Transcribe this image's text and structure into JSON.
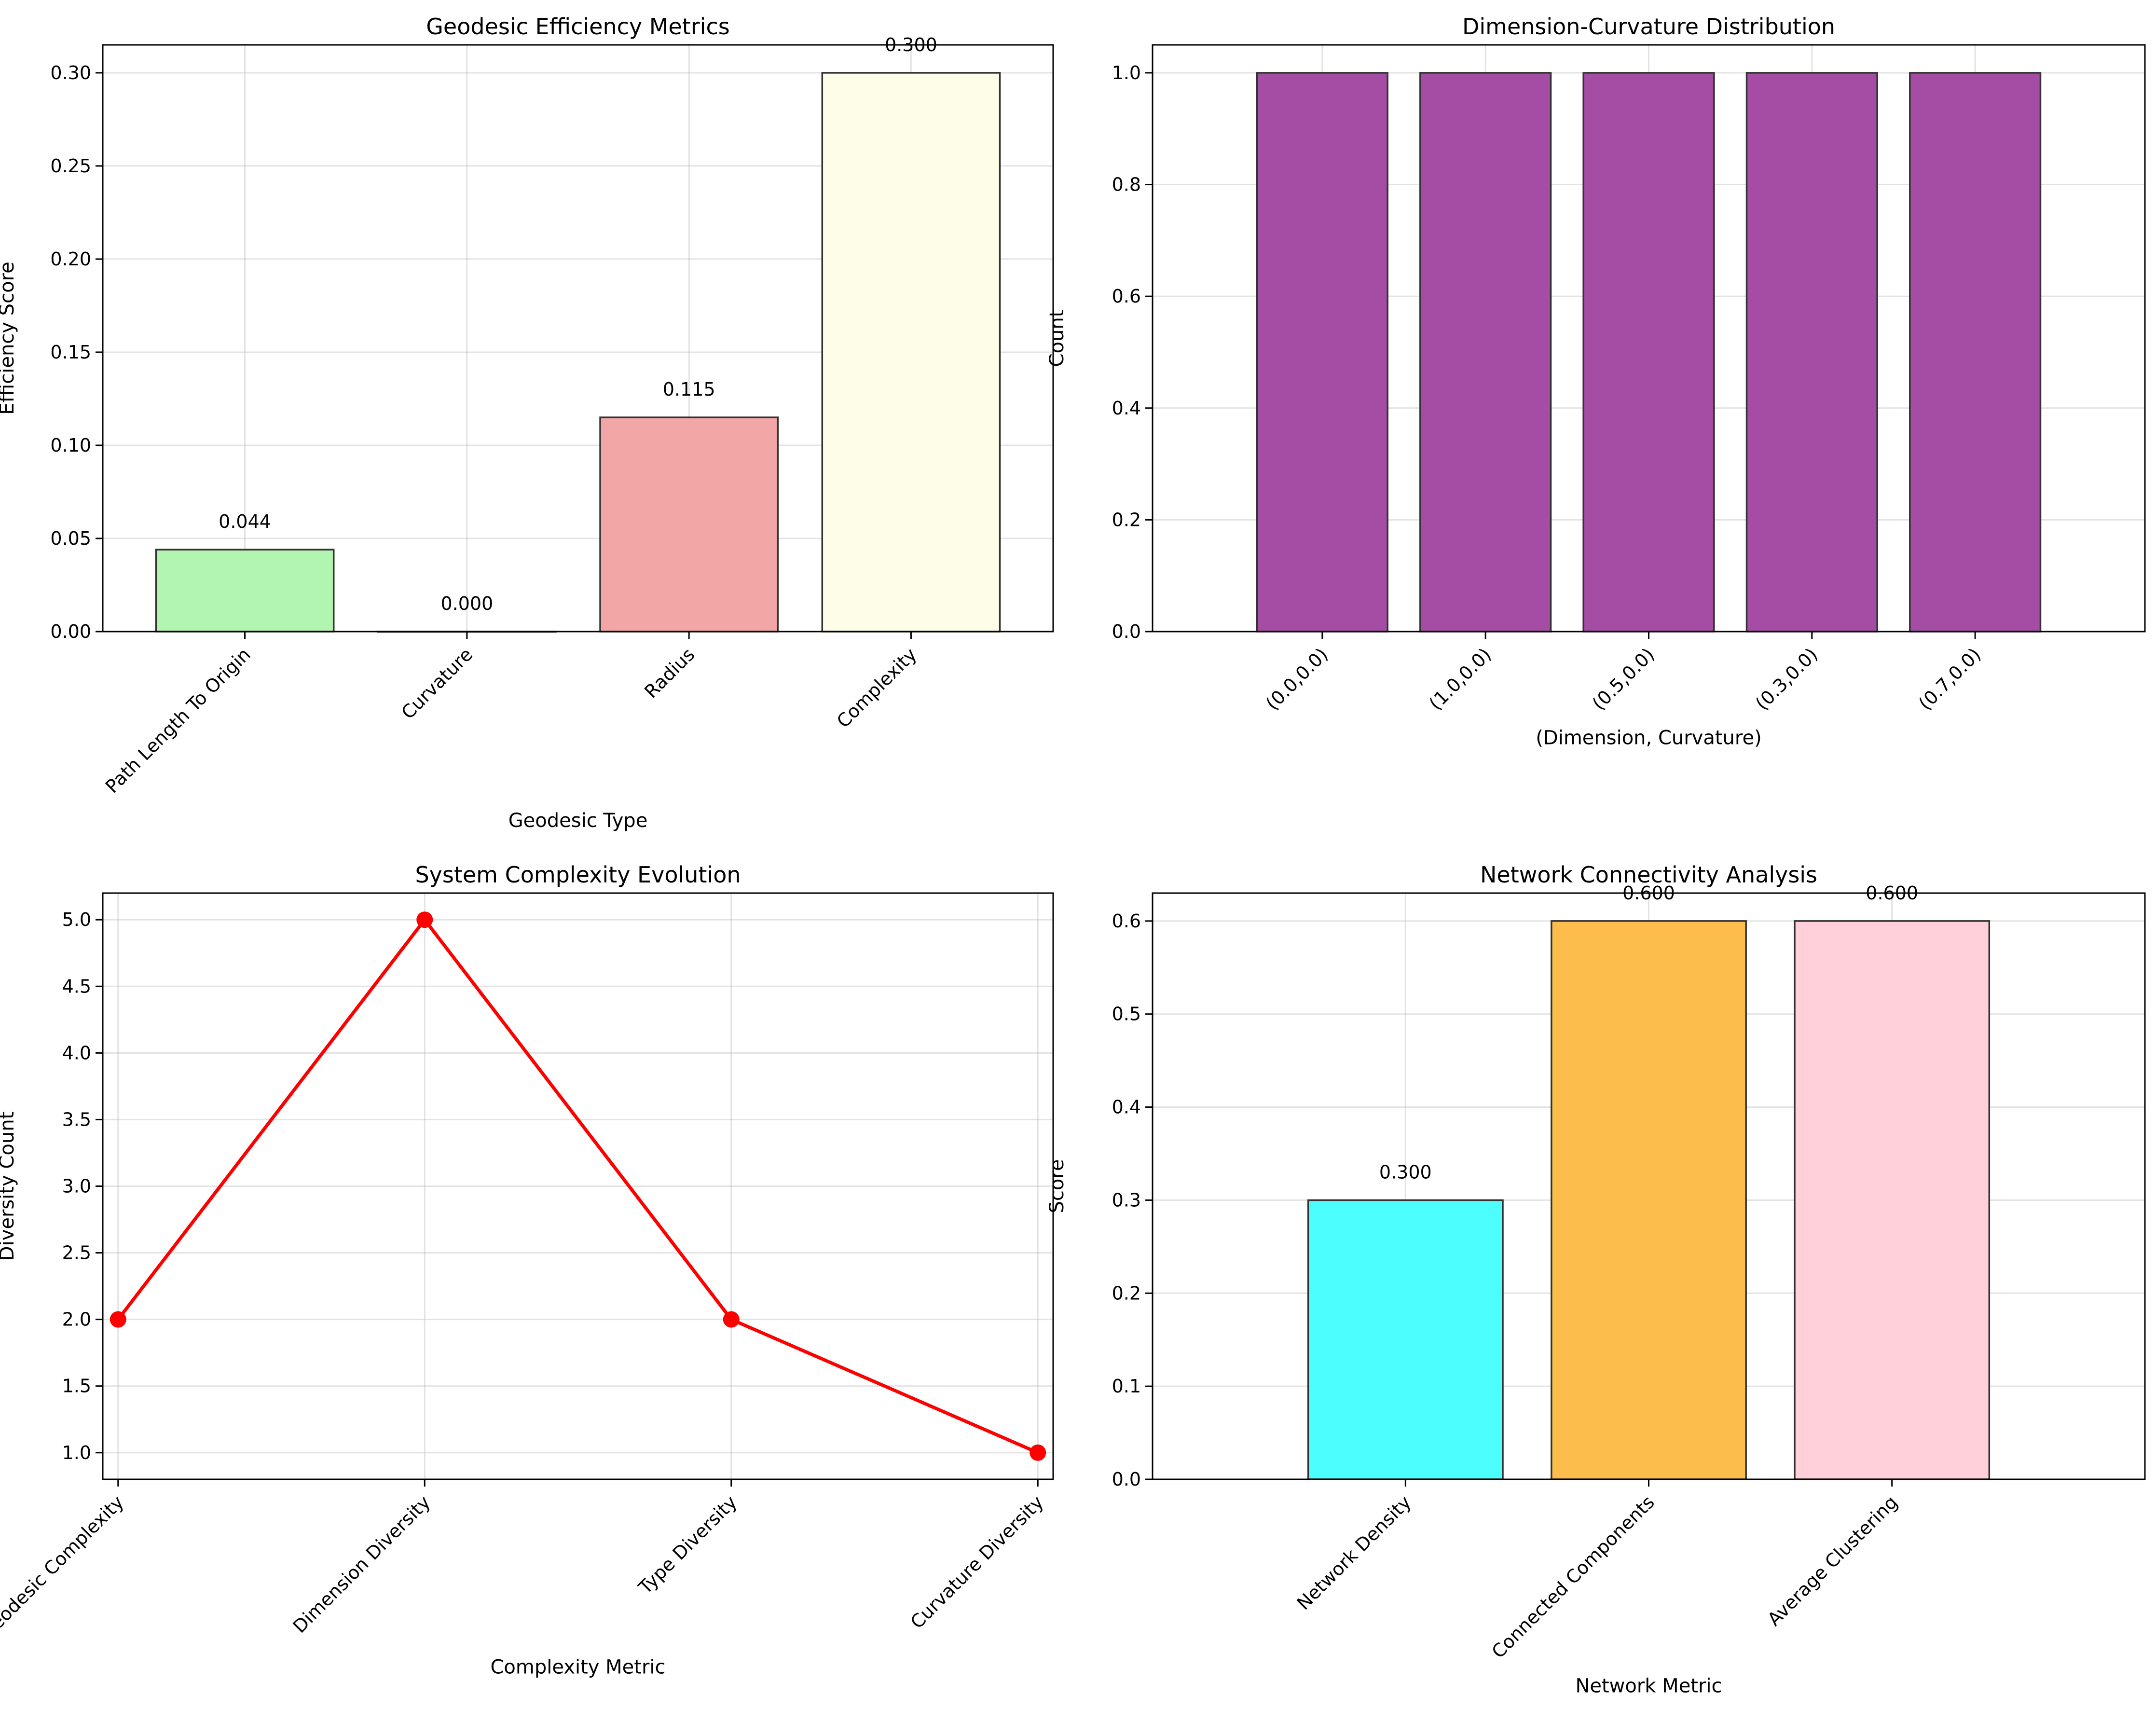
{
  "chart_data": [
    {
      "id": "geodesic",
      "type": "bar",
      "title": "Geodesic Efficiency Metrics",
      "xlabel": "Geodesic Type",
      "ylabel": "Efficiency Score",
      "categories": [
        "Path Length To Origin",
        "Curvature",
        "Radius",
        "Complexity"
      ],
      "values": [
        0.044,
        0.0,
        0.115,
        0.3
      ],
      "value_labels": [
        "0.044",
        "0.000",
        "0.115",
        "0.300"
      ],
      "colors": [
        "#b2f5b0",
        "#dddddd",
        "#f2a6a6",
        "#fefee8"
      ],
      "ylim": [
        0,
        0.315
      ],
      "yticks": [
        0.0,
        0.05,
        0.1,
        0.15,
        0.2,
        0.25,
        0.3
      ],
      "ytick_labels": [
        "0.00",
        "0.05",
        "0.10",
        "0.15",
        "0.20",
        "0.25",
        "0.30"
      ],
      "grid": true,
      "xtick_rotation": 45
    },
    {
      "id": "dimcurv",
      "type": "bar",
      "title": "Dimension-Curvature Distribution",
      "xlabel": "(Dimension, Curvature)",
      "ylabel": "Count",
      "categories": [
        "(0.0,0.0)",
        "(1.0,0.0)",
        "(0.5,0.0)",
        "(0.3,0.0)",
        "(0.7,0.0)"
      ],
      "values": [
        1,
        1,
        1,
        1,
        1
      ],
      "colors": [
        "#a54ca5",
        "#a54ca5",
        "#a54ca5",
        "#a54ca5",
        "#a54ca5"
      ],
      "ylim": [
        0,
        1.05
      ],
      "yticks": [
        0.0,
        0.2,
        0.4,
        0.6,
        0.8,
        1.0
      ],
      "ytick_labels": [
        "0.0",
        "0.2",
        "0.4",
        "0.6",
        "0.8",
        "1.0"
      ],
      "grid": true,
      "xtick_rotation": 45
    },
    {
      "id": "complexity",
      "type": "line",
      "title": "System Complexity Evolution",
      "xlabel": "Complexity Metric",
      "ylabel": "Diversity Count",
      "categories": [
        "Geodesic Complexity",
        "Dimension Diversity",
        "Type Diversity",
        "Curvature Diversity"
      ],
      "values": [
        2,
        5,
        2,
        1
      ],
      "line_color": "#ff0000",
      "ylim": [
        0.8,
        5.2
      ],
      "yticks": [
        1.0,
        1.5,
        2.0,
        2.5,
        3.0,
        3.5,
        4.0,
        4.5,
        5.0
      ],
      "ytick_labels": [
        "1.0",
        "1.5",
        "2.0",
        "2.5",
        "3.0",
        "3.5",
        "4.0",
        "4.5",
        "5.0"
      ],
      "grid": true,
      "xtick_rotation": 45
    },
    {
      "id": "network",
      "type": "bar",
      "title": "Network Connectivity Analysis",
      "xlabel": "Network Metric",
      "ylabel": "Score",
      "categories": [
        "Network Density",
        "Connected Components",
        "Average Clustering"
      ],
      "values": [
        0.3,
        0.6,
        0.6
      ],
      "value_labels": [
        "0.300",
        "0.600",
        "0.600"
      ],
      "colors": [
        "#4cfefe",
        "#fdbd4d",
        "#ffd0da"
      ],
      "ylim": [
        0,
        0.63
      ],
      "yticks": [
        0.0,
        0.1,
        0.2,
        0.3,
        0.4,
        0.5,
        0.6
      ],
      "ytick_labels": [
        "0.0",
        "0.1",
        "0.2",
        "0.3",
        "0.4",
        "0.5",
        "0.6"
      ],
      "grid": true,
      "xtick_rotation": 45
    }
  ]
}
